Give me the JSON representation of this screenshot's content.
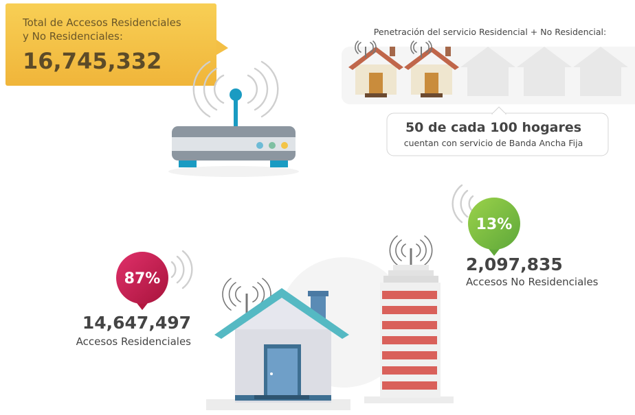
{
  "total": {
    "label_lines": [
      "Total de Accesos Residenciales",
      "y No Residenciales:"
    ],
    "value": "16,745,332"
  },
  "penetration": {
    "title": "Penetración del servicio Residencial + No Residencial:",
    "headline": "50 de cada 100 hogares",
    "caption": "cuentan con servicio de Banda Ancha Fija"
  },
  "residential": {
    "percent": "87%",
    "value": "14,647,497",
    "label": "Accesos Residenciales"
  },
  "non_residential": {
    "percent": "13%",
    "value": "2,097,835",
    "label": "Accesos No Residenciales"
  }
}
